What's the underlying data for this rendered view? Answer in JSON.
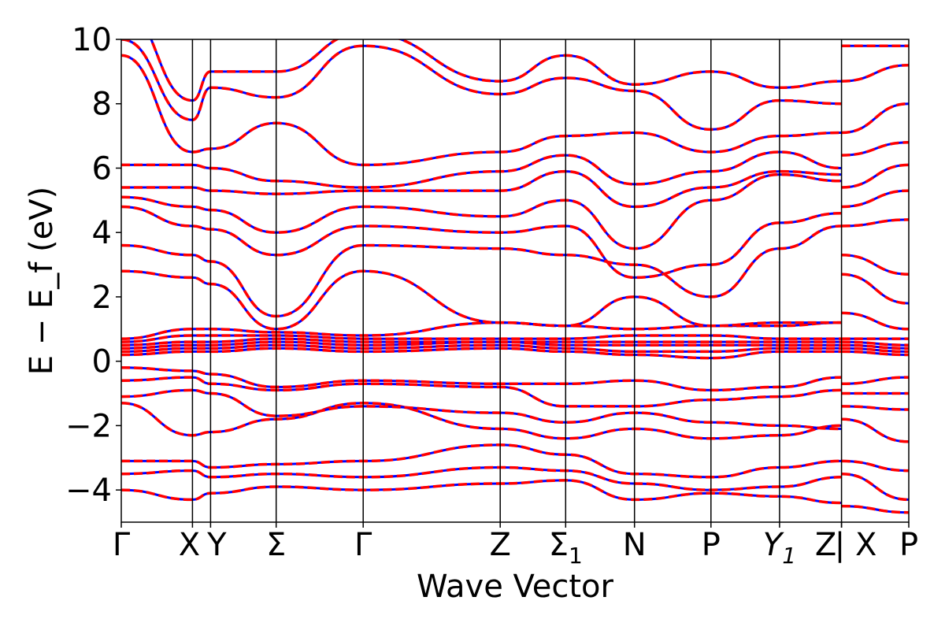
{
  "chart_data": {
    "type": "line",
    "title": "",
    "xlabel": "Wave Vector",
    "ylabel": "E − E_f (eV)",
    "ylim": [
      -5,
      10
    ],
    "yticks": [
      -4,
      -2,
      0,
      2,
      4,
      6,
      8,
      10
    ],
    "ytick_labels": [
      "−4",
      "−2",
      "0",
      "2",
      "4",
      "6",
      "8",
      "10"
    ],
    "grid": false,
    "legend": "none",
    "high_symmetry_points": [
      {
        "label": "Γ",
        "x": 0.0
      },
      {
        "label": "X",
        "x": 0.0904
      },
      {
        "label": "Y",
        "x": 0.1134
      },
      {
        "label": "Σ",
        "x": 0.1967
      },
      {
        "label": "Γ",
        "x": 0.3072
      },
      {
        "label": "Z",
        "x": 0.4812
      },
      {
        "label": "Σ1",
        "x": 0.5643
      },
      {
        "label": "N",
        "x": 0.6517
      },
      {
        "label": "P",
        "x": 0.7488
      },
      {
        "label": "Y1",
        "x": 0.8359
      },
      {
        "label": "Z",
        "x": 0.9146
      },
      {
        "label": "| X",
        "x": 0.9146
      },
      {
        "label": "P",
        "x": 1.0
      }
    ],
    "series": [
      {
        "style": "solid",
        "color": "#0000ff"
      },
      {
        "style": "dashed",
        "color": "#ff0000"
      }
    ],
    "bands": [
      [
        -4.0,
        -4.3,
        -4.1,
        -3.9,
        -4.0,
        -3.8,
        -3.7,
        -4.3,
        -4.1,
        -4.2,
        -4.4,
        -4.5,
        -4.7
      ],
      [
        -3.5,
        -3.4,
        -3.6,
        -3.5,
        -3.6,
        -3.3,
        -3.4,
        -3.8,
        -4.0,
        -3.9,
        -3.6,
        -3.5,
        -4.3
      ],
      [
        -3.1,
        -3.1,
        -3.3,
        -3.2,
        -3.1,
        -2.6,
        -2.9,
        -3.5,
        -3.6,
        -3.3,
        -3.1,
        -3.1,
        -3.4
      ],
      [
        -1.3,
        -2.3,
        -2.2,
        -1.8,
        -1.3,
        -2.1,
        -2.4,
        -2.1,
        -2.4,
        -2.3,
        -2.0,
        -1.8,
        -2.5
      ],
      [
        -1.1,
        -0.9,
        -1.0,
        -1.7,
        -1.4,
        -1.6,
        -1.9,
        -1.6,
        -1.9,
        -2.0,
        -2.1,
        -1.4,
        -1.5
      ],
      [
        -0.6,
        -0.5,
        -0.7,
        -0.9,
        -0.7,
        -0.8,
        -1.4,
        -1.4,
        -1.2,
        -1.1,
        -0.9,
        -1.0,
        -1.0
      ],
      [
        -0.2,
        -0.3,
        -0.4,
        -0.8,
        -0.6,
        -0.7,
        -0.7,
        -0.6,
        -0.9,
        -0.8,
        -0.5,
        -0.7,
        -0.5
      ],
      [
        0.2,
        0.3,
        0.3,
        0.4,
        0.3,
        0.4,
        0.3,
        0.2,
        0.1,
        0.3,
        0.3,
        0.3,
        0.2
      ],
      [
        0.3,
        0.4,
        0.4,
        0.5,
        0.4,
        0.5,
        0.4,
        0.3,
        0.3,
        0.4,
        0.4,
        0.4,
        0.3
      ],
      [
        0.4,
        0.5,
        0.5,
        0.6,
        0.5,
        0.6,
        0.5,
        0.5,
        0.5,
        0.5,
        0.5,
        0.5,
        0.4
      ],
      [
        0.5,
        0.6,
        0.6,
        0.7,
        0.6,
        0.6,
        0.6,
        0.6,
        0.6,
        0.6,
        0.6,
        0.6,
        0.5
      ],
      [
        0.6,
        0.8,
        0.8,
        0.8,
        0.7,
        0.7,
        0.7,
        0.8,
        0.8,
        0.7,
        0.7,
        0.7,
        0.7
      ],
      [
        0.7,
        1.0,
        1.0,
        0.9,
        0.8,
        1.2,
        1.1,
        1.0,
        1.1,
        1.1,
        1.2,
        1.5,
        1.0
      ],
      [
        2.8,
        2.6,
        2.4,
        1.0,
        2.8,
        1.2,
        1.1,
        2.0,
        1.1,
        1.2,
        1.2,
        2.7,
        1.8
      ],
      [
        3.6,
        3.3,
        3.1,
        1.4,
        3.6,
        3.5,
        3.3,
        3.0,
        2.0,
        3.5,
        4.2,
        3.3,
        2.7
      ],
      [
        4.8,
        4.2,
        4.1,
        3.3,
        4.2,
        4.0,
        4.2,
        2.6,
        3.0,
        4.3,
        4.6,
        4.2,
        4.4
      ],
      [
        5.1,
        4.8,
        4.7,
        4.0,
        4.8,
        4.5,
        5.0,
        3.5,
        5.0,
        5.8,
        5.6,
        4.8,
        5.3
      ],
      [
        5.4,
        5.4,
        5.3,
        5.2,
        5.3,
        5.3,
        5.9,
        4.8,
        5.4,
        5.9,
        5.8,
        5.4,
        6.1
      ],
      [
        6.1,
        6.1,
        6.0,
        5.6,
        5.4,
        5.9,
        6.4,
        5.5,
        5.9,
        6.5,
        6.0,
        6.4,
        6.8
      ],
      [
        9.5,
        6.5,
        6.6,
        7.4,
        6.1,
        6.5,
        7.0,
        7.1,
        6.5,
        7.0,
        7.1,
        7.1,
        8.0
      ],
      [
        10.0,
        7.5,
        8.5,
        8.2,
        9.8,
        8.3,
        8.8,
        8.4,
        7.2,
        8.1,
        8.0,
        8.7,
        9.2
      ],
      [
        11.0,
        8.1,
        9.0,
        9.0,
        10.2,
        8.7,
        9.5,
        8.6,
        9.0,
        8.5,
        8.7,
        9.8,
        9.8
      ]
    ]
  }
}
